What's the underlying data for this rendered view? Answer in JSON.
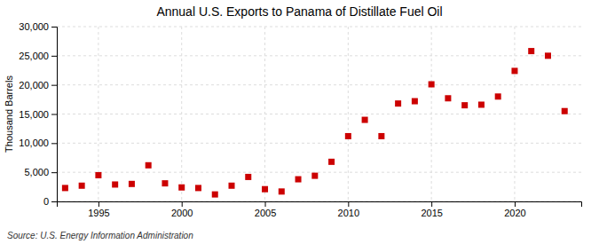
{
  "chart_data": {
    "type": "scatter",
    "title": "Annual U.S. Exports to Panama of Distillate Fuel Oil",
    "y_label": "Thousand Barrels",
    "source": "Source: U.S. Energy Information Administration",
    "x": [
      1993,
      1994,
      1995,
      1996,
      1997,
      1998,
      1999,
      2000,
      2001,
      2002,
      2003,
      2004,
      2005,
      2006,
      2007,
      2008,
      2009,
      2010,
      2011,
      2012,
      2013,
      2014,
      2015,
      2016,
      2017,
      2018,
      2019,
      2020,
      2021,
      2022,
      2023
    ],
    "values": [
      2300,
      2700,
      4500,
      2900,
      3000,
      6200,
      3100,
      2400,
      2300,
      1200,
      2700,
      4200,
      2100,
      1700,
      3800,
      4400,
      6800,
      11200,
      14000,
      11200,
      16800,
      17200,
      20100,
      17700,
      16500,
      16600,
      18000,
      22400,
      25800,
      25000,
      15500
    ],
    "color": "#cc0000",
    "marker": "square",
    "xlim": [
      1992.5,
      2024
    ],
    "xticks": [
      1995,
      2000,
      2005,
      2010,
      2015,
      2020
    ],
    "ylim": [
      0,
      30000
    ],
    "yticks": [
      0,
      {
        "value": 5000,
        "label": "5,000"
      },
      {
        "value": 10000,
        "label": "10,000"
      },
      {
        "value": 15000,
        "label": "15,000"
      },
      {
        "value": 20000,
        "label": "20,000"
      },
      {
        "value": 25000,
        "label": "25,000"
      },
      {
        "value": 30000,
        "label": "30,000"
      }
    ],
    "grid": true
  }
}
